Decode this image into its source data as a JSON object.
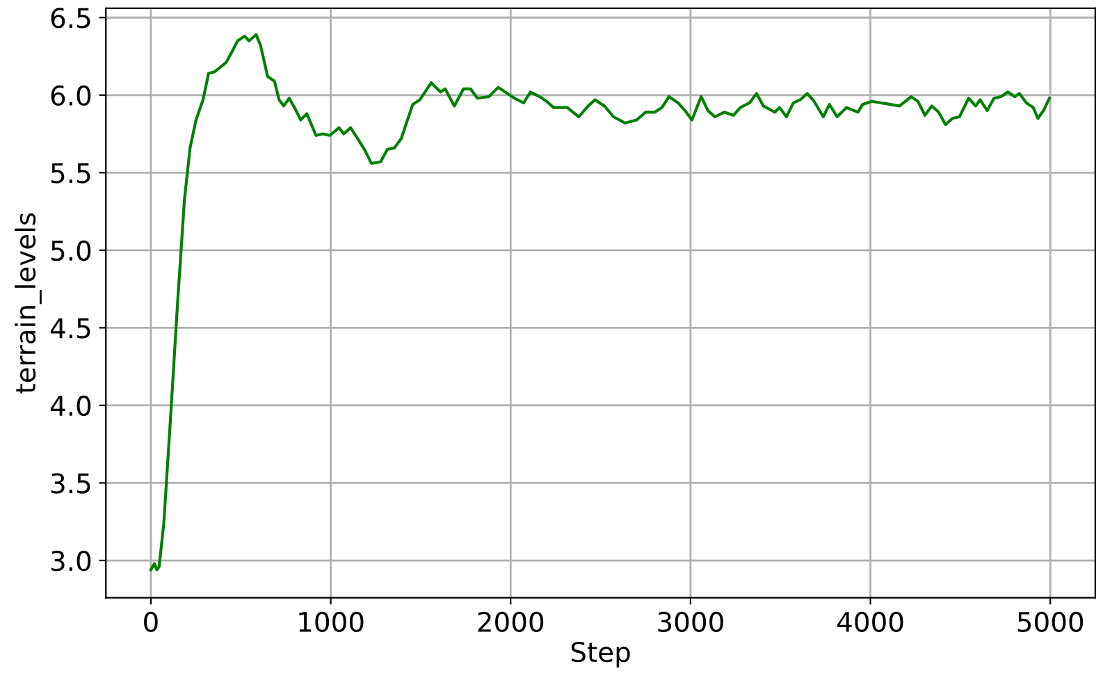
{
  "chart_data": {
    "type": "line",
    "xlabel": "Step",
    "ylabel": "terrain_levels",
    "xlim": [
      -250,
      5250
    ],
    "ylim": [
      2.76,
      6.56
    ],
    "xticks": [
      0,
      1000,
      2000,
      3000,
      4000,
      5000
    ],
    "yticks": [
      {
        "value": 3.0,
        "label": "3.0"
      },
      {
        "value": 3.5,
        "label": "3.5"
      },
      {
        "value": 4.0,
        "label": "4.0"
      },
      {
        "value": 4.5,
        "label": "4.5"
      },
      {
        "value": 5.0,
        "label": "5.0"
      },
      {
        "value": 5.5,
        "label": "5.5"
      },
      {
        "value": 6.0,
        "label": "6.0"
      },
      {
        "value": 6.5,
        "label": "6.5"
      }
    ],
    "grid": true,
    "legend": false,
    "marker": "none",
    "line_style": "solid",
    "series": [
      {
        "color": "#008000",
        "x": [
          0,
          20,
          33,
          46,
          72,
          110,
          149,
          187,
          218,
          251,
          290,
          321,
          354,
          418,
          456,
          482,
          521,
          546,
          585,
          610,
          649,
          687,
          713,
          738,
          769,
          803,
          833,
          867,
          918,
          956,
          995,
          1046,
          1072,
          1110,
          1149,
          1187,
          1226,
          1277,
          1315,
          1354,
          1392,
          1418,
          1456,
          1495,
          1559,
          1610,
          1636,
          1687,
          1738,
          1777,
          1815,
          1879,
          1931,
          1982,
          2021,
          2072,
          2110,
          2162,
          2200,
          2239,
          2315,
          2379,
          2431,
          2469,
          2521,
          2572,
          2636,
          2700,
          2751,
          2802,
          2841,
          2880,
          2931,
          2969,
          3008,
          3059,
          3097,
          3136,
          3187,
          3238,
          3277,
          3328,
          3367,
          3405,
          3469,
          3495,
          3533,
          3572,
          3610,
          3649,
          3687,
          3738,
          3772,
          3815,
          3867,
          3931,
          3956,
          4008,
          4059,
          4110,
          4162,
          4226,
          4264,
          4303,
          4341,
          4379,
          4418,
          4456,
          4495,
          4546,
          4585,
          4610,
          4649,
          4687,
          4726,
          4764,
          4803,
          4828,
          4867,
          4905,
          4931,
          4962,
          4995
        ],
        "values": [
          2.94,
          2.98,
          2.94,
          2.96,
          3.24,
          3.93,
          4.67,
          5.33,
          5.66,
          5.84,
          5.97,
          6.14,
          6.15,
          6.21,
          6.29,
          6.35,
          6.38,
          6.35,
          6.39,
          6.32,
          6.12,
          6.09,
          5.97,
          5.93,
          5.98,
          5.91,
          5.84,
          5.88,
          5.74,
          5.75,
          5.74,
          5.79,
          5.75,
          5.79,
          5.72,
          5.65,
          5.56,
          5.57,
          5.65,
          5.66,
          5.72,
          5.81,
          5.94,
          5.97,
          6.08,
          6.02,
          6.04,
          5.93,
          6.04,
          6.04,
          5.98,
          5.99,
          6.05,
          6.01,
          5.98,
          5.95,
          6.02,
          5.99,
          5.96,
          5.92,
          5.92,
          5.86,
          5.93,
          5.97,
          5.93,
          5.86,
          5.82,
          5.84,
          5.89,
          5.89,
          5.92,
          5.99,
          5.95,
          5.9,
          5.84,
          5.99,
          5.9,
          5.86,
          5.89,
          5.87,
          5.92,
          5.95,
          6.01,
          5.93,
          5.89,
          5.92,
          5.86,
          5.95,
          5.97,
          6.01,
          5.96,
          5.86,
          5.94,
          5.86,
          5.92,
          5.89,
          5.94,
          5.96,
          5.95,
          5.94,
          5.93,
          5.99,
          5.96,
          5.87,
          5.93,
          5.89,
          5.81,
          5.85,
          5.86,
          5.98,
          5.93,
          5.97,
          5.9,
          5.98,
          5.99,
          6.02,
          5.99,
          6.01,
          5.95,
          5.92,
          5.85,
          5.9,
          5.98
        ]
      }
    ]
  }
}
